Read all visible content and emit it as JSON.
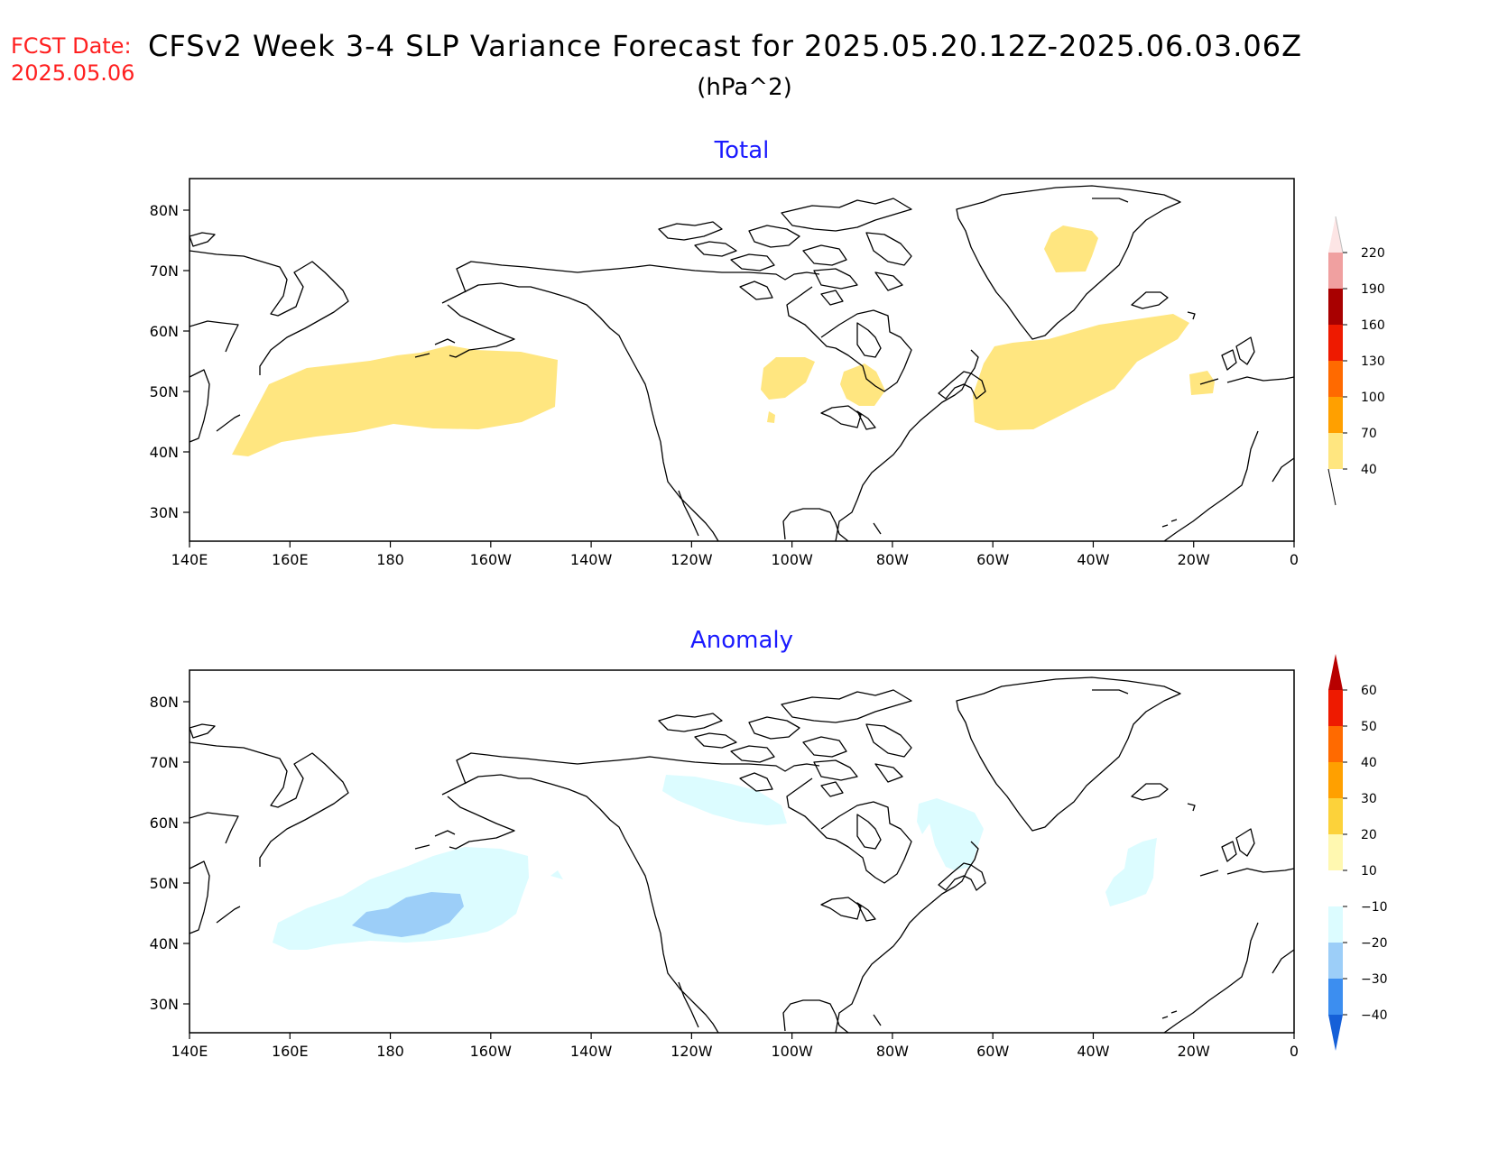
{
  "header": {
    "fcst_label": "FCST Date:",
    "fcst_date": "2025.05.06",
    "title": "CFSv2 Week 3-4 SLP Variance Forecast for 2025.05.20.12Z-2025.06.03.06Z",
    "units": "(hPa^2)"
  },
  "map_axes": {
    "lon_labels": [
      "140E",
      "160E",
      "180",
      "160W",
      "140W",
      "120W",
      "100W",
      "80W",
      "60W",
      "40W",
      "20W",
      "0"
    ],
    "lat_labels": [
      "80N",
      "70N",
      "60N",
      "50N",
      "40N",
      "30N"
    ]
  },
  "panels": [
    {
      "title": "Total",
      "colorbar": {
        "labels": [
          "40",
          "70",
          "100",
          "130",
          "160",
          "190",
          "220"
        ],
        "colors": [
          "#ffe680",
          "#ffa000",
          "#ff6a00",
          "#ee1a00",
          "#a80000",
          "#f0a0a0",
          "#fde5e5"
        ]
      },
      "shaded_features": [
        "North Pacific 40-70 band",
        "Central Canada patches",
        "North Atlantic / Greenland patches"
      ]
    },
    {
      "title": "Anomaly",
      "colorbar": {
        "labels": [
          "-40",
          "-30",
          "-20",
          "-10",
          "10",
          "20",
          "30",
          "40",
          "50",
          "60"
        ],
        "colors": [
          "#1560d8",
          "#3c8ef0",
          "#9ccef8",
          "#dcfcff",
          "#ffffff",
          "#fff8b0",
          "#fcd23a",
          "#ffa000",
          "#ff6a00",
          "#ee1a00",
          "#b80000"
        ]
      },
      "shaded_features": [
        "North Pacific -10 to -30",
        "Northern Canada -10",
        "Eastern Canada -10",
        "Central North Atlantic -10"
      ]
    }
  ]
}
